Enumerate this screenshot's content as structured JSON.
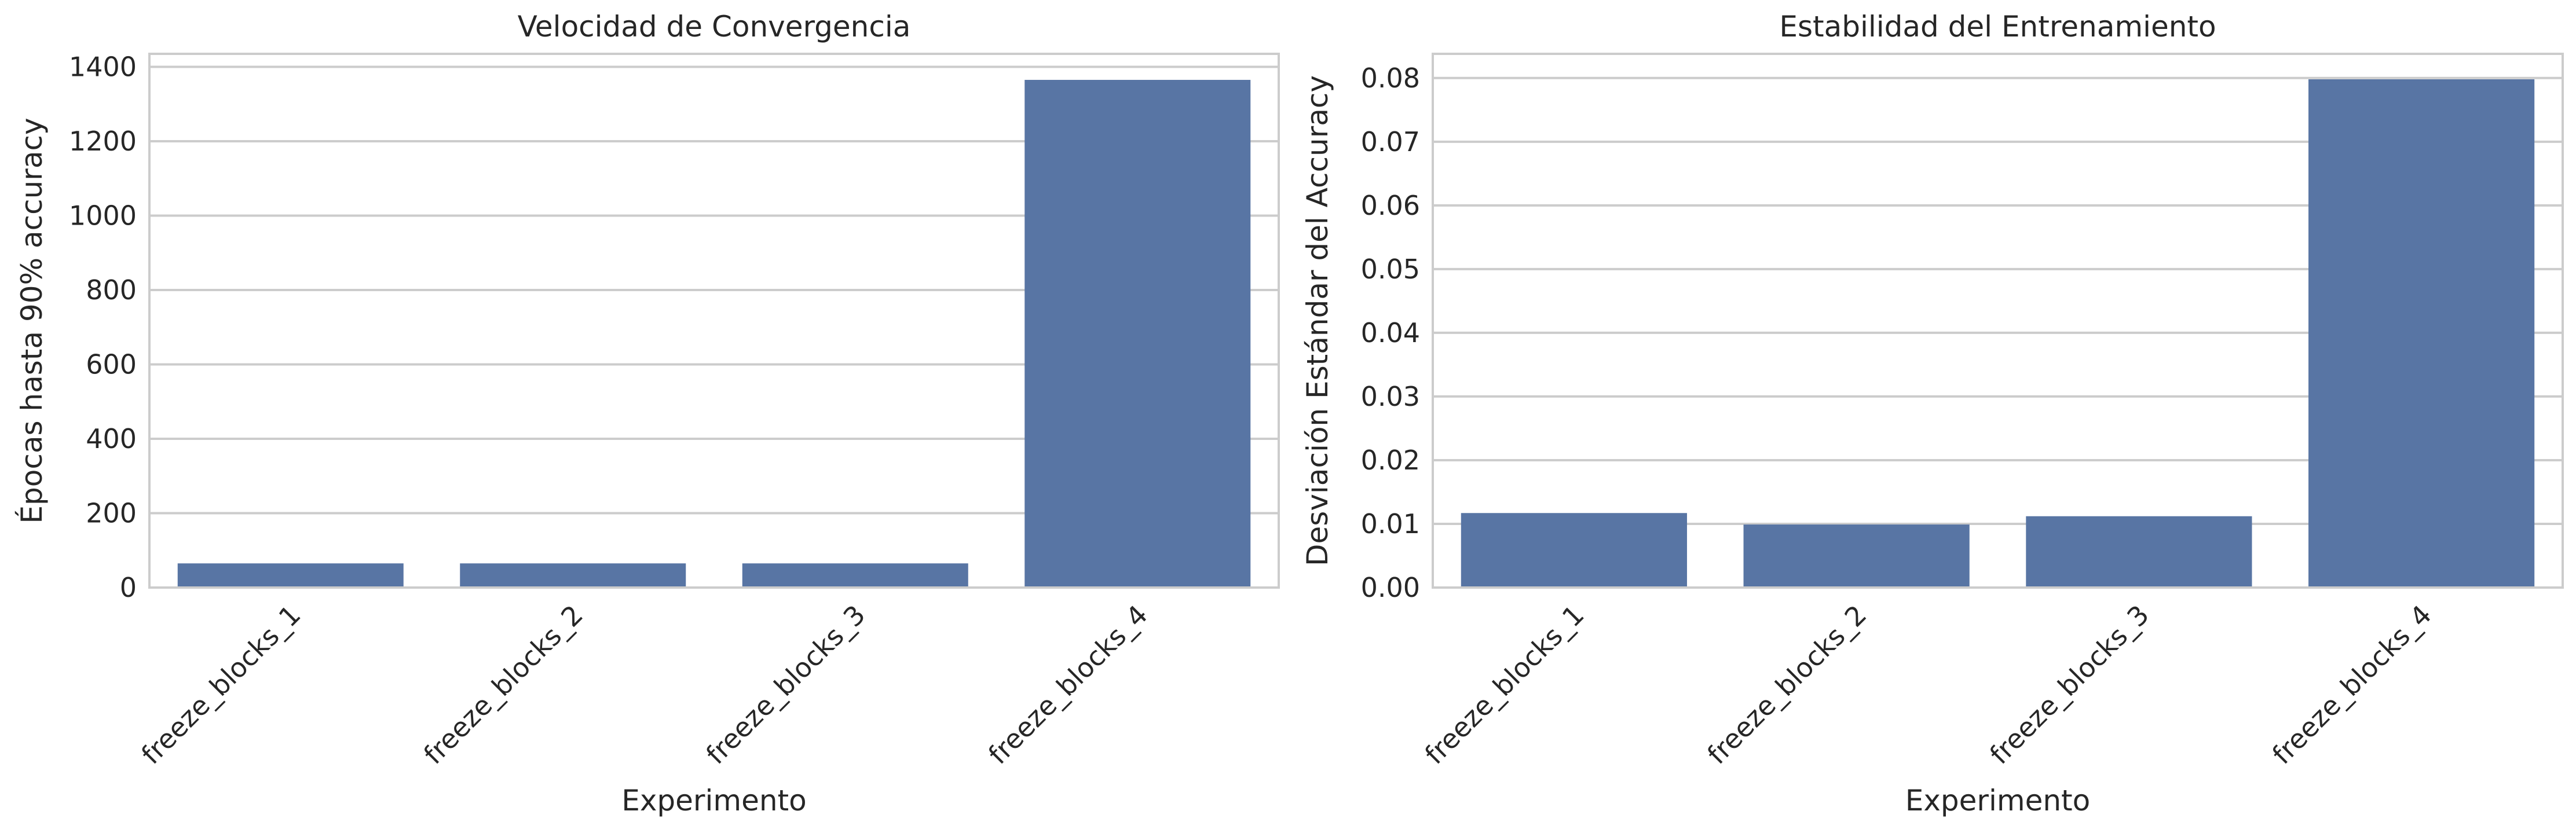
{
  "chart_data": [
    {
      "type": "bar",
      "title": "Velocidad de Convergencia",
      "xlabel": "Experimento",
      "ylabel": "Épocas hasta 90% accuracy",
      "categories": [
        "freeze_blocks_1",
        "freeze_blocks_2",
        "freeze_blocks_3",
        "freeze_blocks_4"
      ],
      "values": [
        65,
        65,
        65,
        1365
      ],
      "ylim": [
        0,
        1435
      ],
      "yticks": [
        0,
        200,
        400,
        600,
        800,
        1000,
        1200,
        1400
      ],
      "ytick_labels": [
        "0",
        "200",
        "400",
        "600",
        "800",
        "1000",
        "1200",
        "1400"
      ],
      "grid": "horizontal",
      "bar_color": "#5875a4"
    },
    {
      "type": "bar",
      "title": "Estabilidad del Entrenamiento",
      "xlabel": "Experimento",
      "ylabel": "Desviación Estándar del Accuracy",
      "categories": [
        "freeze_blocks_1",
        "freeze_blocks_2",
        "freeze_blocks_3",
        "freeze_blocks_4"
      ],
      "values": [
        0.0117,
        0.0099,
        0.0112,
        0.0798
      ],
      "ylim": [
        0,
        0.0838
      ],
      "yticks": [
        0,
        0.01,
        0.02,
        0.03,
        0.04,
        0.05,
        0.06,
        0.07,
        0.08
      ],
      "ytick_labels": [
        "0.00",
        "0.01",
        "0.02",
        "0.03",
        "0.04",
        "0.05",
        "0.06",
        "0.07",
        "0.08"
      ],
      "grid": "horizontal",
      "bar_color": "#5875a4"
    }
  ],
  "colors": {
    "axis_frame": "#cccccc",
    "grid": "#cccccc",
    "text": "#262626",
    "background": "#ffffff"
  }
}
